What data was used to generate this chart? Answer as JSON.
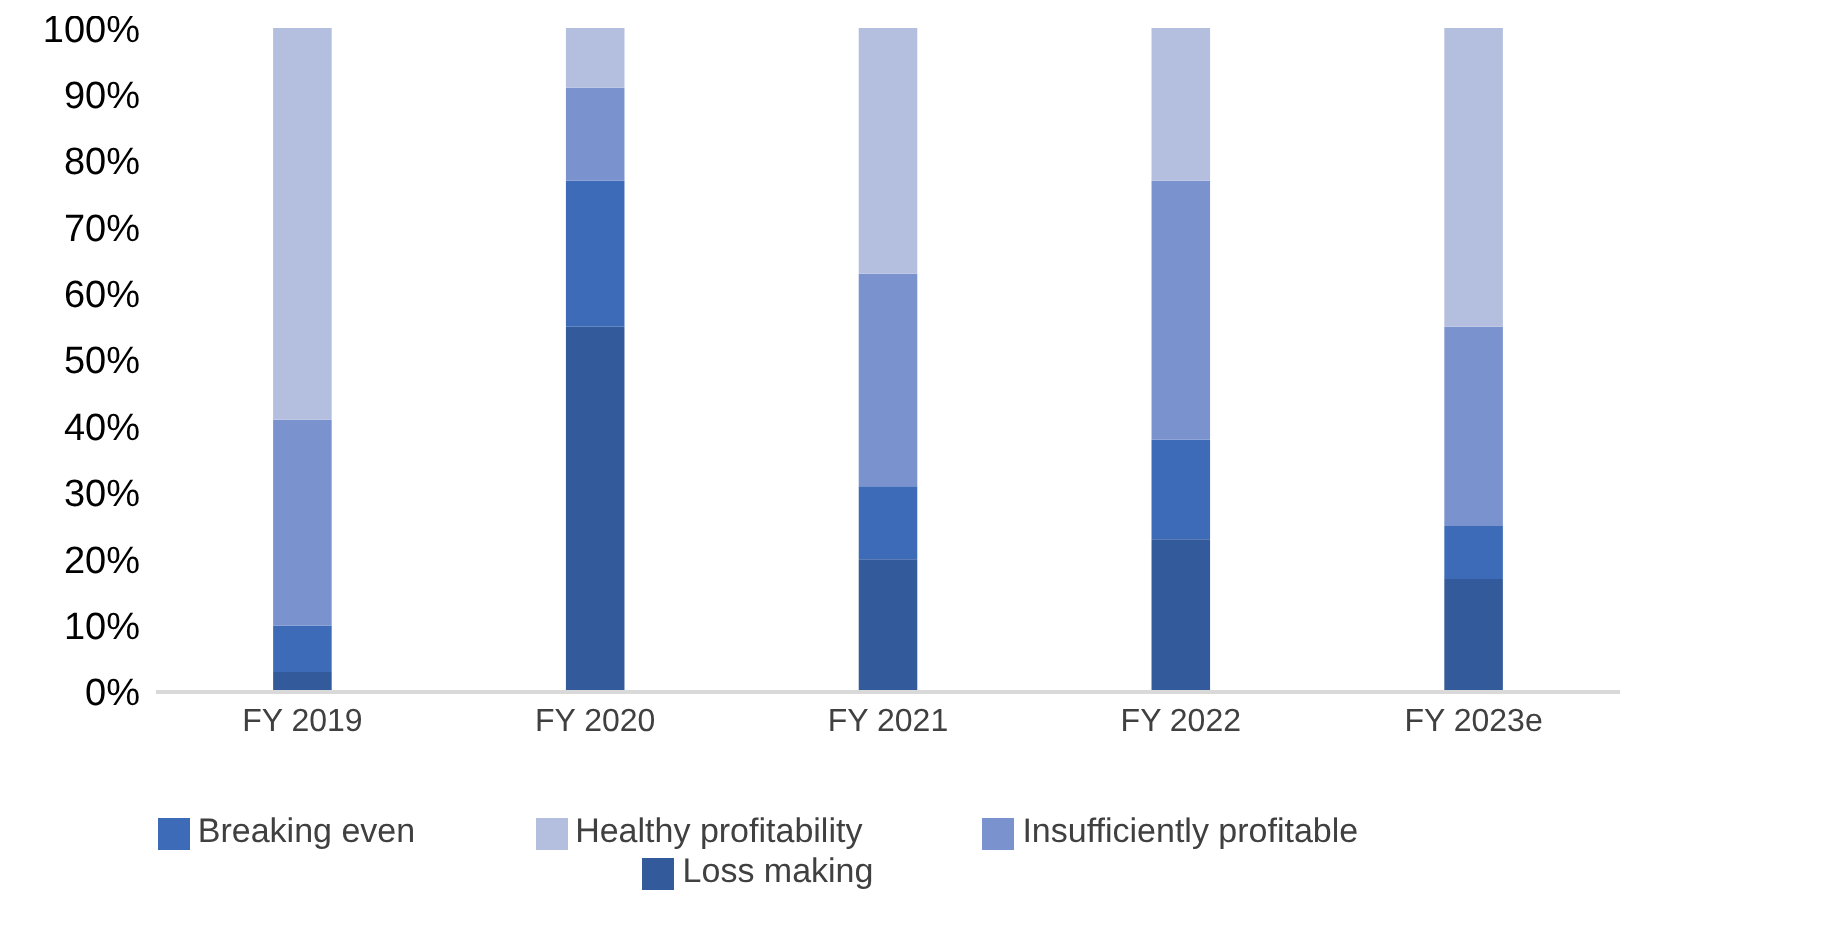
{
  "chart_data": {
    "type": "bar",
    "stacked": true,
    "categories": [
      "FY 2019",
      "FY 2020",
      "FY 2021",
      "FY 2022",
      "FY 2023e"
    ],
    "series": [
      {
        "name": "Loss making",
        "color": "#335a9a",
        "values": [
          3,
          55,
          20,
          23,
          17
        ]
      },
      {
        "name": "Breaking even",
        "color": "#3e6bb8",
        "values": [
          7,
          22,
          11,
          15,
          8
        ]
      },
      {
        "name": "Insufficiently profitable",
        "color": "#7a93cf",
        "values": [
          31,
          14,
          32,
          39,
          30
        ]
      },
      {
        "name": "Healthy profitability",
        "color": "#b4bfdf",
        "values": [
          59,
          9,
          37,
          23,
          45
        ]
      }
    ],
    "ylim": [
      0,
      100
    ],
    "yticks": [
      {
        "value": 0,
        "label": "0%"
      },
      {
        "value": 10,
        "label": "10%"
      },
      {
        "value": 20,
        "label": "20%"
      },
      {
        "value": 30,
        "label": "30%"
      },
      {
        "value": 40,
        "label": "40%"
      },
      {
        "value": 50,
        "label": "50%"
      },
      {
        "value": 60,
        "label": "60%"
      },
      {
        "value": 70,
        "label": "70%"
      },
      {
        "value": 80,
        "label": "80%"
      },
      {
        "value": 90,
        "label": "90%"
      },
      {
        "value": 100,
        "label": "100%"
      }
    ],
    "grid": false,
    "legend": "bottom"
  }
}
